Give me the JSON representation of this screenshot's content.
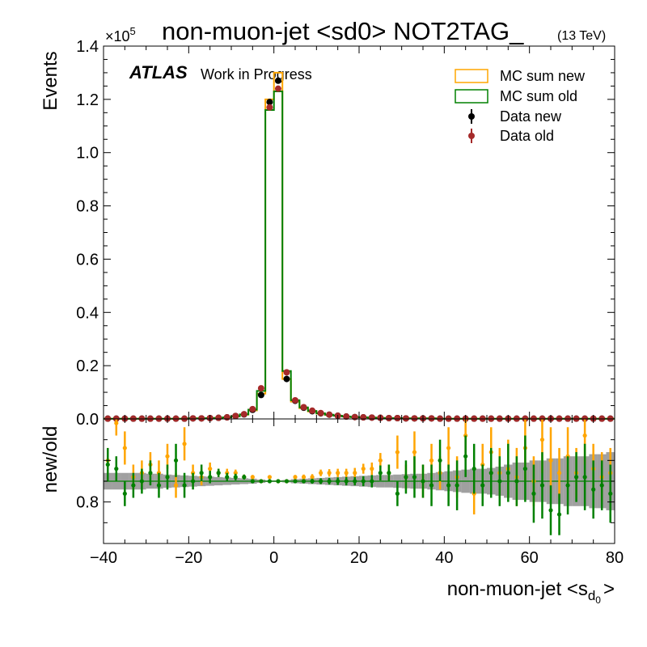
{
  "chart_data": [
    {
      "type": "line",
      "panel": "main",
      "title": "non-muon-jet <sd0> NOT2TAG_",
      "subtitle": "(13 TeV)",
      "atlas_label": "ATLAS",
      "atlas_sublabel": "Work in Progress",
      "ylabel": "Events",
      "yscale_label": "×10",
      "yscale_exp": "5",
      "xlim": [
        -40,
        80
      ],
      "ylim": [
        0,
        1.4
      ],
      "y_multiplier": 100000,
      "x_ticks": [
        -40,
        -20,
        0,
        20,
        40,
        60,
        80
      ],
      "y_ticks": [
        0.0,
        0.2,
        0.4,
        0.6,
        0.8,
        1.0,
        1.2,
        1.4
      ],
      "y_tick_labels": [
        "0.0",
        "0.2",
        "0.4",
        "0.6",
        "0.8",
        "1.0",
        "1.2",
        "1.4"
      ],
      "legend_position": "top-right",
      "bin_edges": [
        -40,
        -38,
        -36,
        -34,
        -32,
        -30,
        -28,
        -26,
        -24,
        -22,
        -20,
        -18,
        -16,
        -14,
        -12,
        -10,
        -8,
        -6,
        -4,
        -2,
        0,
        2,
        4,
        6,
        8,
        10,
        12,
        14,
        16,
        18,
        20,
        22,
        24,
        26,
        28,
        30,
        32,
        34,
        36,
        38,
        40,
        42,
        44,
        46,
        48,
        50,
        52,
        54,
        56,
        58,
        60,
        62,
        64,
        66,
        68,
        70,
        72,
        74,
        76,
        78,
        80
      ],
      "series": [
        {
          "name": "MC sum new",
          "style": "step",
          "color": "#ffa500",
          "values": [
            0.001,
            0.001,
            0.001,
            0.001,
            0.001,
            0.001,
            0.001,
            0.001,
            0.001,
            0.001,
            0.002,
            0.002,
            0.003,
            0.004,
            0.006,
            0.01,
            0.016,
            0.032,
            0.095,
            1.2,
            1.3,
            0.15,
            0.065,
            0.04,
            0.028,
            0.02,
            0.015,
            0.012,
            0.009,
            0.007,
            0.006,
            0.005,
            0.004,
            0.003,
            0.003,
            0.002,
            0.002,
            0.002,
            0.002,
            0.001,
            0.001,
            0.001,
            0.001,
            0.001,
            0.001,
            0.001,
            0.001,
            0.001,
            0.001,
            0.001,
            0.001,
            0.001,
            0.001,
            0.001,
            0.001,
            0.001,
            0.001,
            0.001,
            0.001,
            0.001
          ]
        },
        {
          "name": "MC sum old",
          "style": "step",
          "color": "#008000",
          "values": [
            0.001,
            0.001,
            0.001,
            0.001,
            0.001,
            0.001,
            0.001,
            0.001,
            0.001,
            0.001,
            0.002,
            0.002,
            0.003,
            0.004,
            0.006,
            0.01,
            0.017,
            0.035,
            0.105,
            1.16,
            1.23,
            0.18,
            0.07,
            0.043,
            0.03,
            0.021,
            0.016,
            0.012,
            0.009,
            0.007,
            0.006,
            0.005,
            0.004,
            0.003,
            0.003,
            0.002,
            0.002,
            0.002,
            0.002,
            0.001,
            0.001,
            0.001,
            0.001,
            0.001,
            0.001,
            0.001,
            0.001,
            0.001,
            0.001,
            0.001,
            0.001,
            0.001,
            0.001,
            0.001,
            0.001,
            0.001,
            0.001,
            0.001,
            0.001,
            0.001
          ]
        },
        {
          "name": "Data new",
          "style": "points",
          "color": "#000000",
          "values": [
            0.001,
            0.001,
            0.001,
            0.001,
            0.001,
            0.001,
            0.001,
            0.001,
            0.001,
            0.001,
            0.002,
            0.002,
            0.003,
            0.004,
            0.006,
            0.011,
            0.017,
            0.034,
            0.09,
            1.19,
            1.27,
            0.15,
            0.068,
            0.042,
            0.029,
            0.021,
            0.016,
            0.012,
            0.009,
            0.007,
            0.006,
            0.005,
            0.004,
            0.003,
            0.003,
            0.002,
            0.002,
            0.002,
            0.002,
            0.001,
            0.001,
            0.001,
            0.001,
            0.001,
            0.001,
            0.001,
            0.001,
            0.001,
            0.001,
            0.001,
            0.001,
            0.001,
            0.001,
            0.001,
            0.001,
            0.001,
            0.001,
            0.001,
            0.001,
            0.001
          ]
        },
        {
          "name": "Data old",
          "style": "points",
          "color": "#a52a2a",
          "values": [
            0.001,
            0.001,
            0.001,
            0.001,
            0.001,
            0.001,
            0.001,
            0.001,
            0.001,
            0.001,
            0.002,
            0.002,
            0.003,
            0.004,
            0.006,
            0.011,
            0.018,
            0.037,
            0.115,
            1.17,
            1.24,
            0.175,
            0.07,
            0.044,
            0.031,
            0.022,
            0.016,
            0.012,
            0.009,
            0.007,
            0.006,
            0.005,
            0.004,
            0.003,
            0.003,
            0.002,
            0.002,
            0.002,
            0.002,
            0.001,
            0.001,
            0.001,
            0.001,
            0.001,
            0.001,
            0.001,
            0.001,
            0.001,
            0.001,
            0.001,
            0.001,
            0.001,
            0.001,
            0.001,
            0.001,
            0.001,
            0.001,
            0.001,
            0.001,
            0.001
          ]
        }
      ]
    },
    {
      "type": "scatter",
      "panel": "ratio",
      "ylabel": "new/old",
      "xlabel": "non-muon-jet <s",
      "xlabel_sub": "d",
      "xlabel_subsub": "0",
      "xlabel_end": ">",
      "xlim": [
        -40,
        80
      ],
      "ylim": [
        0.7,
        1.0
      ],
      "x_ticks": [
        -40,
        -20,
        0,
        20,
        40,
        60,
        80
      ],
      "x_tick_labels": [
        "−40",
        "−20",
        "0",
        "20",
        "40",
        "60",
        "80"
      ],
      "y_ticks": [
        0.8
      ],
      "y_tick_labels": [
        "0.8"
      ],
      "reference_line": 0.85,
      "reference_color": "#008000",
      "band_color": "#808080",
      "band_half_width": [
        0.02,
        0.02,
        0.02,
        0.02,
        0.02,
        0.018,
        0.018,
        0.016,
        0.015,
        0.014,
        0.013,
        0.012,
        0.011,
        0.01,
        0.009,
        0.008,
        0.007,
        0.006,
        0.004,
        0.002,
        0.002,
        0.003,
        0.005,
        0.006,
        0.007,
        0.008,
        0.009,
        0.01,
        0.011,
        0.012,
        0.013,
        0.014,
        0.015,
        0.015,
        0.016,
        0.017,
        0.018,
        0.018,
        0.02,
        0.022,
        0.024,
        0.026,
        0.028,
        0.03,
        0.03,
        0.032,
        0.035,
        0.04,
        0.045,
        0.045,
        0.05,
        0.05,
        0.055,
        0.055,
        0.06,
        0.06,
        0.06,
        0.065,
        0.065,
        0.07
      ],
      "series": [
        {
          "name": "MC ratio",
          "color": "#ffa500",
          "values": [
            0.9,
            0.99,
            0.93,
            0.86,
            0.87,
            0.89,
            0.87,
            0.91,
            0.84,
            0.94,
            0.87,
            0.86,
            0.88,
            0.87,
            0.87,
            0.87,
            0.86,
            0.86,
            0.85,
            0.86,
            0.85,
            0.85,
            0.86,
            0.86,
            0.86,
            0.87,
            0.87,
            0.87,
            0.87,
            0.87,
            0.88,
            0.88,
            0.9,
            0.87,
            0.92,
            0.86,
            0.92,
            0.85,
            0.9,
            0.87,
            0.93,
            0.86,
            0.96,
            0.82,
            0.89,
            0.92,
            0.87,
            0.88,
            0.86,
            0.93,
            0.85,
            0.95,
            0.9,
            0.87,
            0.91,
            0.87,
            0.96,
            0.88,
            0.86,
            0.87
          ],
          "errors": [
            0.03,
            0.03,
            0.04,
            0.03,
            0.03,
            0.03,
            0.03,
            0.03,
            0.03,
            0.04,
            0.02,
            0.02,
            0.015,
            0.01,
            0.01,
            0.008,
            0.006,
            0.005,
            0.003,
            0.002,
            0.002,
            0.003,
            0.005,
            0.006,
            0.007,
            0.008,
            0.009,
            0.01,
            0.01,
            0.012,
            0.012,
            0.015,
            0.018,
            0.02,
            0.04,
            0.03,
            0.05,
            0.04,
            0.04,
            0.04,
            0.05,
            0.05,
            0.06,
            0.05,
            0.05,
            0.06,
            0.06,
            0.07,
            0.07,
            0.08,
            0.06,
            0.08,
            0.08,
            0.06,
            0.07,
            0.06,
            0.07,
            0.06,
            0.06,
            0.06
          ]
        },
        {
          "name": "Data ratio",
          "color": "#008000",
          "values": [
            0.89,
            0.88,
            0.82,
            0.84,
            0.85,
            0.87,
            0.84,
            0.86,
            0.9,
            0.84,
            0.85,
            0.87,
            0.86,
            0.87,
            0.86,
            0.86,
            0.86,
            0.85,
            0.85,
            0.85,
            0.85,
            0.85,
            0.85,
            0.85,
            0.85,
            0.85,
            0.85,
            0.85,
            0.85,
            0.85,
            0.85,
            0.85,
            0.87,
            0.87,
            0.82,
            0.86,
            0.86,
            0.85,
            0.84,
            0.9,
            0.84,
            0.84,
            0.91,
            0.88,
            0.84,
            0.87,
            0.85,
            0.87,
            0.85,
            0.88,
            0.82,
            0.84,
            0.78,
            0.77,
            0.84,
            0.86,
            0.86,
            0.83,
            0.84,
            0.82
          ],
          "errors": [
            0.04,
            0.03,
            0.03,
            0.03,
            0.03,
            0.03,
            0.03,
            0.03,
            0.04,
            0.03,
            0.02,
            0.02,
            0.015,
            0.01,
            0.01,
            0.008,
            0.006,
            0.005,
            0.003,
            0.002,
            0.002,
            0.003,
            0.004,
            0.005,
            0.006,
            0.007,
            0.008,
            0.009,
            0.01,
            0.01,
            0.012,
            0.015,
            0.018,
            0.02,
            0.03,
            0.04,
            0.05,
            0.04,
            0.05,
            0.05,
            0.05,
            0.06,
            0.05,
            0.06,
            0.05,
            0.06,
            0.06,
            0.07,
            0.06,
            0.08,
            0.07,
            0.08,
            0.06,
            0.05,
            0.07,
            0.06,
            0.08,
            0.07,
            0.06,
            0.07
          ]
        }
      ]
    }
  ]
}
